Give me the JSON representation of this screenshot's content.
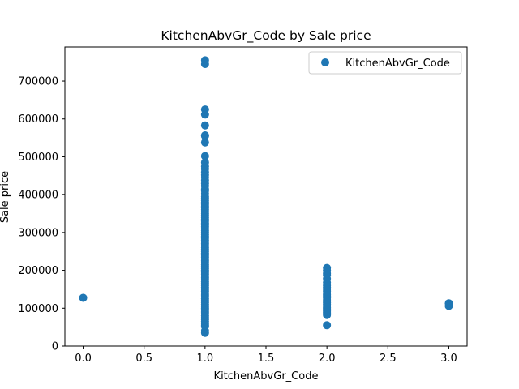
{
  "chart_data": {
    "type": "scatter",
    "title": "KitchenAbvGr_Code by Sale price",
    "xlabel": "KitchenAbvGr_Code",
    "ylabel": "Sale price",
    "xlim": [
      -0.15,
      3.15
    ],
    "ylim": [
      0,
      790000
    ],
    "xticks": [
      0.0,
      0.5,
      1.0,
      1.5,
      2.0,
      2.5,
      3.0
    ],
    "xtick_labels": [
      "0.0",
      "0.5",
      "1.0",
      "1.5",
      "2.0",
      "2.5",
      "3.0"
    ],
    "yticks": [
      0,
      100000,
      200000,
      300000,
      400000,
      500000,
      600000,
      700000
    ],
    "ytick_labels": [
      "0",
      "100000",
      "200000",
      "300000",
      "400000",
      "500000",
      "600000",
      "700000"
    ],
    "grid": false,
    "legend_position": "top-right",
    "series": [
      {
        "name": "KitchenAbvGr_Code",
        "color": "#1f77b4",
        "points": [
          [
            0,
            127500
          ],
          [
            1,
            34900
          ],
          [
            1,
            40000
          ],
          [
            1,
            52000
          ],
          [
            1,
            55000
          ],
          [
            1,
            60000
          ],
          [
            1,
            65000
          ],
          [
            1,
            70000
          ],
          [
            1,
            75000
          ],
          [
            1,
            80000
          ],
          [
            1,
            85000
          ],
          [
            1,
            90000
          ],
          [
            1,
            95000
          ],
          [
            1,
            100000
          ],
          [
            1,
            105000
          ],
          [
            1,
            110000
          ],
          [
            1,
            115000
          ],
          [
            1,
            120000
          ],
          [
            1,
            125000
          ],
          [
            1,
            130000
          ],
          [
            1,
            135000
          ],
          [
            1,
            140000
          ],
          [
            1,
            145000
          ],
          [
            1,
            150000
          ],
          [
            1,
            155000
          ],
          [
            1,
            160000
          ],
          [
            1,
            165000
          ],
          [
            1,
            170000
          ],
          [
            1,
            175000
          ],
          [
            1,
            180000
          ],
          [
            1,
            185000
          ],
          [
            1,
            190000
          ],
          [
            1,
            195000
          ],
          [
            1,
            200000
          ],
          [
            1,
            205000
          ],
          [
            1,
            210000
          ],
          [
            1,
            215000
          ],
          [
            1,
            220000
          ],
          [
            1,
            225000
          ],
          [
            1,
            230000
          ],
          [
            1,
            235000
          ],
          [
            1,
            240000
          ],
          [
            1,
            245000
          ],
          [
            1,
            250000
          ],
          [
            1,
            255000
          ],
          [
            1,
            260000
          ],
          [
            1,
            265000
          ],
          [
            1,
            270000
          ],
          [
            1,
            275000
          ],
          [
            1,
            280000
          ],
          [
            1,
            285000
          ],
          [
            1,
            290000
          ],
          [
            1,
            295000
          ],
          [
            1,
            300000
          ],
          [
            1,
            305000
          ],
          [
            1,
            310000
          ],
          [
            1,
            315000
          ],
          [
            1,
            320000
          ],
          [
            1,
            325000
          ],
          [
            1,
            330000
          ],
          [
            1,
            335000
          ],
          [
            1,
            340000
          ],
          [
            1,
            345000
          ],
          [
            1,
            350000
          ],
          [
            1,
            355000
          ],
          [
            1,
            360000
          ],
          [
            1,
            365000
          ],
          [
            1,
            370000
          ],
          [
            1,
            375000
          ],
          [
            1,
            380000
          ],
          [
            1,
            385000
          ],
          [
            1,
            390000
          ],
          [
            1,
            395000
          ],
          [
            1,
            402000
          ],
          [
            1,
            410000
          ],
          [
            1,
            415000
          ],
          [
            1,
            423000
          ],
          [
            1,
            430000
          ],
          [
            1,
            438000
          ],
          [
            1,
            446000
          ],
          [
            1,
            452000
          ],
          [
            1,
            460000
          ],
          [
            1,
            468000
          ],
          [
            1,
            475000
          ],
          [
            1,
            485000
          ],
          [
            1,
            501837
          ],
          [
            1,
            538000
          ],
          [
            1,
            555000
          ],
          [
            1,
            556581
          ],
          [
            1,
            582933
          ],
          [
            1,
            611657
          ],
          [
            1,
            625000
          ],
          [
            1,
            745000
          ],
          [
            1,
            755000
          ],
          [
            2,
            55000
          ],
          [
            2,
            82000
          ],
          [
            2,
            87000
          ],
          [
            2,
            90000
          ],
          [
            2,
            94000
          ],
          [
            2,
            98000
          ],
          [
            2,
            102000
          ],
          [
            2,
            106000
          ],
          [
            2,
            110000
          ],
          [
            2,
            114000
          ],
          [
            2,
            118000
          ],
          [
            2,
            122000
          ],
          [
            2,
            127000
          ],
          [
            2,
            132000
          ],
          [
            2,
            136000
          ],
          [
            2,
            140000
          ],
          [
            2,
            145000
          ],
          [
            2,
            150000
          ],
          [
            2,
            155000
          ],
          [
            2,
            160000
          ],
          [
            2,
            168000
          ],
          [
            2,
            178000
          ],
          [
            2,
            188000
          ],
          [
            2,
            192000
          ],
          [
            2,
            200000
          ],
          [
            2,
            206300
          ],
          [
            3,
            106000
          ],
          [
            3,
            113000
          ]
        ]
      }
    ]
  }
}
